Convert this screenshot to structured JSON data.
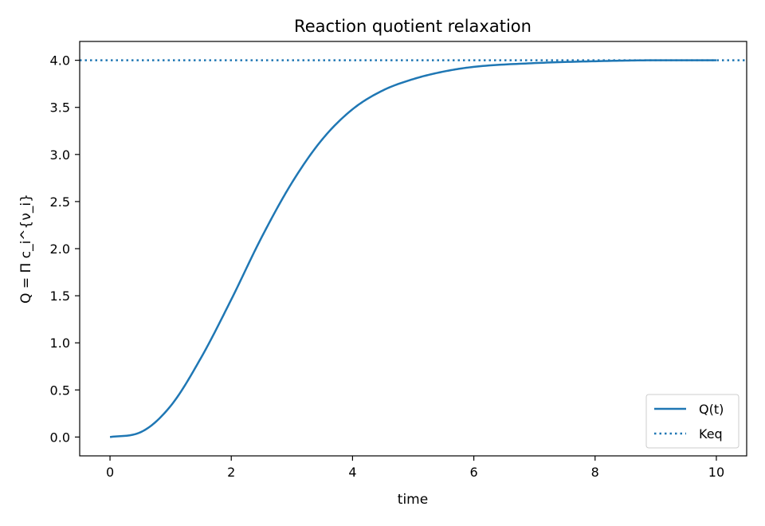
{
  "chart_data": {
    "type": "line",
    "title": "Reaction quotient relaxation",
    "xlabel": "time",
    "ylabel": "Q = Π c_i^{ν_i}",
    "xlim": [
      -0.5,
      10.5
    ],
    "ylim": [
      -0.2,
      4.2
    ],
    "xticks": [
      0,
      2,
      4,
      6,
      8,
      10
    ],
    "xtick_labels": [
      "0",
      "2",
      "4",
      "6",
      "8",
      "10"
    ],
    "yticks": [
      0.0,
      0.5,
      1.0,
      1.5,
      2.0,
      2.5,
      3.0,
      3.5,
      4.0
    ],
    "ytick_labels": [
      "0.0",
      "0.5",
      "1.0",
      "1.5",
      "2.0",
      "2.5",
      "3.0",
      "3.5",
      "4.0"
    ],
    "grid": false,
    "legend_position": "bottom-right",
    "series": [
      {
        "name": "Q(t)",
        "style": "solid",
        "color": "#1f77b4",
        "x": [
          0,
          0.5,
          1,
          1.5,
          2,
          2.5,
          3,
          3.5,
          4,
          4.5,
          5,
          5.5,
          6,
          7,
          8,
          9,
          10
        ],
        "y": [
          0.0,
          0.05,
          0.33,
          0.84,
          1.46,
          2.12,
          2.7,
          3.16,
          3.48,
          3.68,
          3.8,
          3.88,
          3.93,
          3.97,
          3.99,
          4.0,
          4.0
        ]
      },
      {
        "name": "Keq",
        "style": "dotted",
        "color": "#1f77b4",
        "y_constant": 4.0
      }
    ]
  }
}
